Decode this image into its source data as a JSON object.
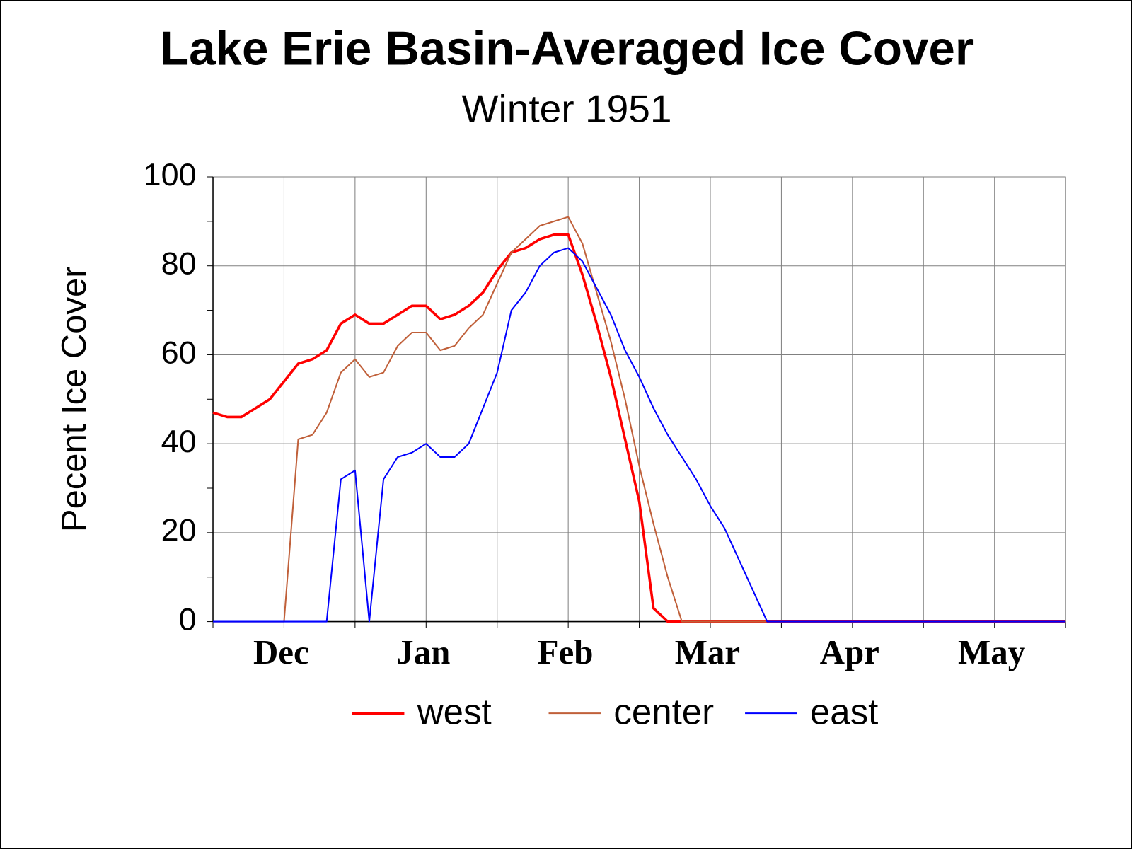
{
  "chart_data": {
    "type": "line",
    "title": "Lake Erie Basin-Averaged Ice Cover",
    "subtitle": "Winter 1951",
    "y_label": "Pecent Ice Cover",
    "x": [
      0,
      3,
      6,
      9,
      12,
      15,
      18,
      21,
      24,
      27,
      30,
      33,
      36,
      39,
      42,
      45,
      48,
      51,
      54,
      57,
      60,
      63,
      66,
      69,
      72,
      75,
      78,
      81,
      84,
      87,
      90,
      93,
      96,
      99,
      102,
      105,
      108,
      111,
      114,
      117,
      120,
      123,
      126,
      129,
      132,
      135,
      138,
      141,
      144,
      147,
      150,
      153,
      156,
      159,
      162,
      165,
      168,
      171,
      174,
      177,
      180
    ],
    "xlim": [
      0,
      180
    ],
    "xticks": [
      {
        "value": 15,
        "label": "Dec"
      },
      {
        "value": 45,
        "label": "Jan"
      },
      {
        "value": 75,
        "label": "Feb"
      },
      {
        "value": 105,
        "label": "Mar"
      },
      {
        "value": 135,
        "label": "Apr"
      },
      {
        "value": 165,
        "label": "May"
      }
    ],
    "x_minor_ticks": [
      0,
      30,
      60,
      90,
      120,
      150,
      180
    ],
    "ylim": [
      0,
      100
    ],
    "yticks": [
      0,
      20,
      40,
      60,
      80,
      100
    ],
    "y_minor_ticks": [
      10,
      30,
      50,
      70,
      90
    ],
    "grid": true,
    "legend": "bottom",
    "series": [
      {
        "name": "west",
        "color": "#ff0000",
        "values": [
          47,
          46,
          46,
          48,
          50,
          54,
          58,
          59,
          61,
          67,
          69,
          67,
          67,
          69,
          71,
          71,
          68,
          69,
          71,
          74,
          79,
          83,
          84,
          86,
          87,
          87,
          78,
          67,
          55,
          41,
          27,
          3,
          0,
          0,
          0,
          0,
          0,
          0,
          0,
          0,
          0,
          0,
          0,
          0,
          0,
          0,
          0,
          0,
          0,
          0,
          0,
          0,
          0,
          0,
          0,
          0,
          0,
          0,
          0,
          0,
          0
        ]
      },
      {
        "name": "center",
        "color": "#c0603a",
        "values": [
          0,
          0,
          0,
          0,
          0,
          0,
          41,
          42,
          47,
          56,
          59,
          55,
          56,
          62,
          65,
          65,
          61,
          62,
          66,
          69,
          76,
          83,
          86,
          89,
          90,
          91,
          85,
          74,
          63,
          50,
          35,
          22,
          10,
          0,
          0,
          0,
          0,
          0,
          0,
          0,
          0,
          0,
          0,
          0,
          0,
          0,
          0,
          0,
          0,
          0,
          0,
          0,
          0,
          0,
          0,
          0,
          0,
          0,
          0,
          0,
          0
        ]
      },
      {
        "name": "east",
        "color": "#0000ff",
        "values": [
          0,
          0,
          0,
          0,
          0,
          0,
          0,
          0,
          0,
          32,
          34,
          0,
          32,
          37,
          38,
          40,
          37,
          37,
          40,
          48,
          56,
          70,
          74,
          80,
          83,
          84,
          81,
          75,
          69,
          61,
          55,
          48,
          42,
          37,
          32,
          26,
          21,
          14,
          7,
          0,
          0,
          0,
          0,
          0,
          0,
          0,
          0,
          0,
          0,
          0,
          0,
          0,
          0,
          0,
          0,
          0,
          0,
          0,
          0,
          0,
          0
        ]
      }
    ]
  }
}
